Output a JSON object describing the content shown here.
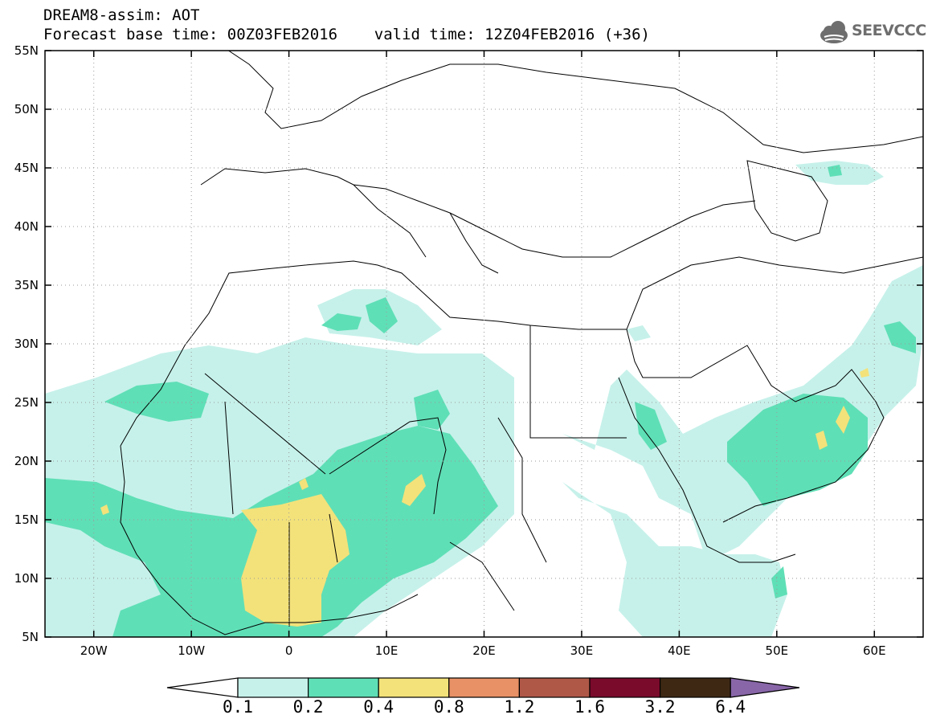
{
  "header": {
    "line1": "DREAM8-assim: AOT",
    "line2": "Forecast base time: 00Z03FEB2016    valid time: 12Z04FEB2016 (+36)"
  },
  "logo": {
    "text": "SEEVCCC",
    "icon": "cloud-icon"
  },
  "map": {
    "x_ticks": [
      "20W",
      "10W",
      "0",
      "10E",
      "20E",
      "30E",
      "40E",
      "50E",
      "60E"
    ],
    "y_ticks": [
      "5N",
      "10N",
      "15N",
      "20N",
      "25N",
      "30N",
      "35N",
      "40N",
      "45N",
      "50N",
      "55N"
    ],
    "lon_range": [
      -25,
      65
    ],
    "lat_range": [
      5,
      55
    ],
    "grid": "dotted"
  },
  "colorbar": {
    "labels": [
      "0.1",
      "0.2",
      "0.4",
      "0.8",
      "1.2",
      "1.6",
      "3.2",
      "6.4"
    ],
    "colors": [
      "#ffffff",
      "#c6f1ea",
      "#5fdfb6",
      "#f3e27a",
      "#e89166",
      "#b05848",
      "#7a0b2b",
      "#3e2814",
      "#8866a8"
    ]
  }
}
